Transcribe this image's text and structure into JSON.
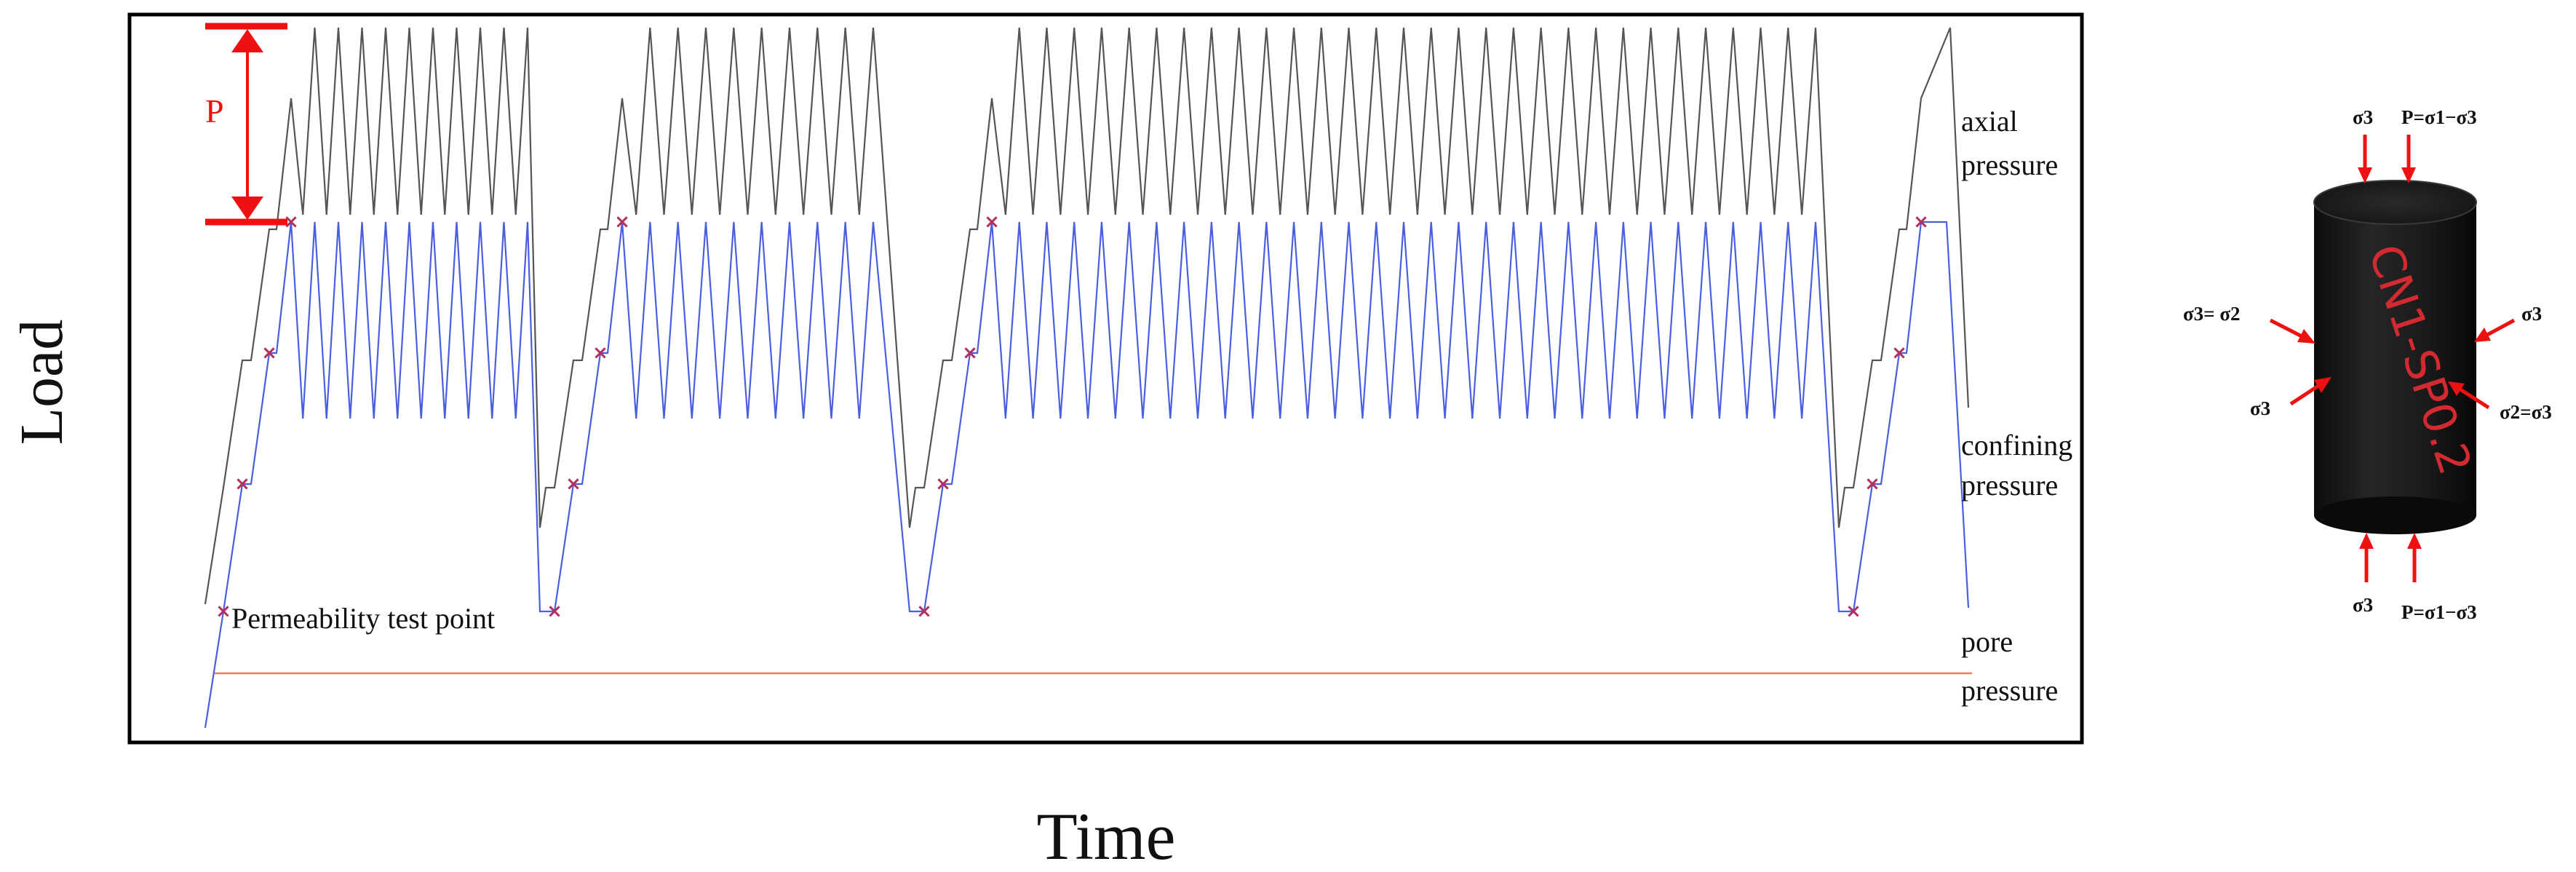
{
  "axes": {
    "y_label": "Load",
    "x_label": "Time"
  },
  "curve_labels": {
    "axial_1": "axial",
    "axial_2": "pressure",
    "confining_1": "confining",
    "confining_2": "pressure",
    "pore_1": "pore",
    "pore_2": "pressure"
  },
  "annotations": {
    "amplitude_label": "P",
    "permeability_point": "Permeability test point"
  },
  "stress_labels": {
    "top_s3": "σ3",
    "top_p": "P=σ1−σ3",
    "left_a": "σ3= σ2",
    "left_b": "σ3",
    "right_a": "σ3",
    "right_b": "σ2=σ3",
    "bottom_s3": "σ3",
    "bottom_p": "P=σ1−σ3"
  },
  "specimen_marking": "CN1-SP0.2",
  "colors": {
    "axial": "#555555",
    "confining": "#4a5fe0",
    "pore": "#e8805a",
    "marker": "#b03060",
    "arrow": "#ee1111",
    "frame": "#000000"
  },
  "cycle_counts": [
    10,
    9,
    30,
    0
  ]
}
